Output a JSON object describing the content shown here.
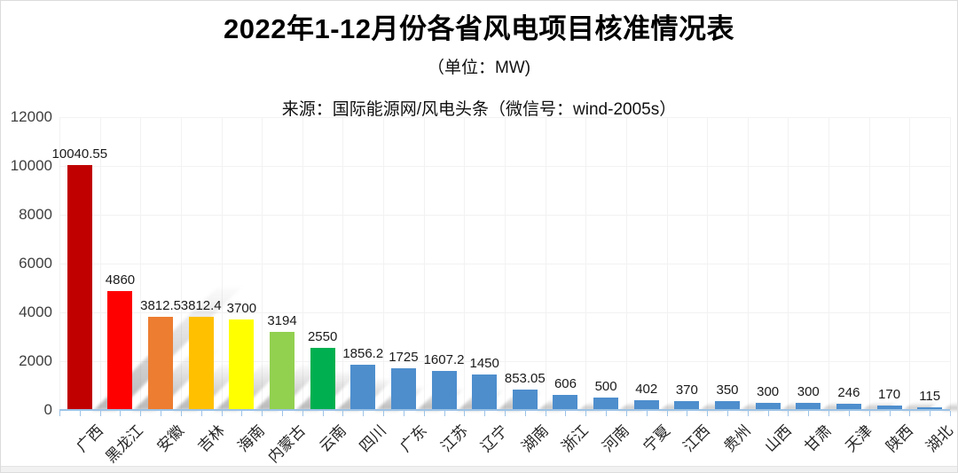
{
  "chart_data": {
    "type": "bar",
    "title": "2022年1-12月份各省风电项目核准情况表",
    "subtitle": "（单位：MW)",
    "source_note": "来源：国际能源网/风电头条（微信号：wind-2005s）",
    "unit": "MW",
    "categories": [
      "广西",
      "黑龙江",
      "安徽",
      "吉林",
      "海南",
      "内蒙古",
      "云南",
      "四川",
      "广东",
      "江苏",
      "辽宁",
      "湖南",
      "浙江",
      "河南",
      "宁夏",
      "江西",
      "贵州",
      "山西",
      "甘肃",
      "天津",
      "陕西",
      "湖北"
    ],
    "values": [
      10040.55,
      4860,
      3812.5,
      3812.4,
      3700,
      3194,
      2550,
      1856.2,
      1725,
      1607.2,
      1450,
      853.05,
      606,
      500,
      402,
      370,
      350,
      300,
      300,
      246,
      170,
      115
    ],
    "data_labels": [
      "10040.55",
      "4860",
      "3812.5",
      "3812.4",
      "3700",
      "3194",
      "2550",
      "1856.2",
      "1725",
      "1607.2",
      "1450",
      "853.05",
      "606",
      "500",
      "402",
      "370",
      "350",
      "300",
      "300",
      "246",
      "170",
      "115"
    ],
    "bar_colors": [
      "#C00000",
      "#FF0000",
      "#ED7D31",
      "#FFC000",
      "#FFFF00",
      "#92D050",
      "#00B050",
      "#4E8ECD",
      "#4E8ECD",
      "#4E8ECD",
      "#4E8ECD",
      "#4E8ECD",
      "#4E8ECD",
      "#4E8ECD",
      "#4E8ECD",
      "#4E8ECD",
      "#4E8ECD",
      "#4E8ECD",
      "#4E8ECD",
      "#4E8ECD",
      "#4E8ECD",
      "#4E8ECD"
    ],
    "xlabel": "",
    "ylabel": "",
    "ylim": [
      0,
      12000
    ],
    "yticks": [
      0,
      2000,
      4000,
      6000,
      8000,
      10000,
      12000
    ],
    "grid": true,
    "legend_position": "none",
    "bar_shadow_effect": true,
    "axis_color": "#9DC3E6",
    "gridline_color": "#F2F2F2"
  }
}
